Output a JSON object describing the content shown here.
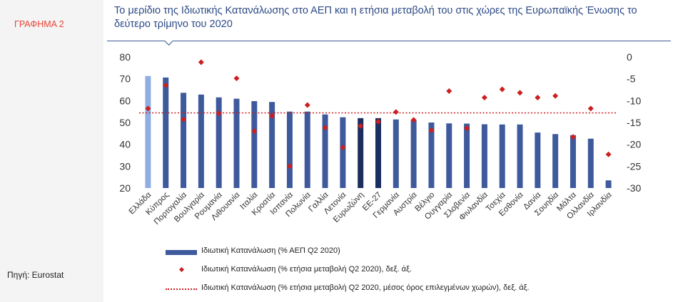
{
  "sidebar": {
    "chart_label": "ΓΡΑΦΗΜΑ 2",
    "source": "Πηγή: Eurostat"
  },
  "header": {
    "title": "Το μερίδιο της Ιδιωτικής Κατανάλωσης στο ΑΕΠ και η ετήσια μεταβολή του στις χώρες της Ευρωπαϊκής Ένωσης το δεύτερο τρίμηνο του 2020"
  },
  "colors": {
    "bar": "#3e5a9c",
    "bar_greece": "#8faee3",
    "bar_eurozone": "#1b2e5e",
    "bar_eu27": "#1b2e5e",
    "marker": "#cc1f1f",
    "avg_line": "#cc1f1f",
    "title": "#2c4a86"
  },
  "chart_data": {
    "type": "bar",
    "title": "",
    "categories": [
      "Ελλάδα",
      "Κύπρος",
      "Πορτογαλία",
      "Βουλγαρία",
      "Ρουμανία",
      "Λιθουανία",
      "Ιταλία",
      "Κροατία",
      "Ισπανία",
      "Πολωνία",
      "Γαλλία",
      "Λετονία",
      "Ευρωζώνη",
      "ΕΕ-27",
      "Γερμανία",
      "Αυστρία",
      "Βέλγιο",
      "Ουγγαρία",
      "Σλοβενία",
      "Φινλανδία",
      "Τσεχία",
      "Εσθονία",
      "Δανία",
      "Σουηδία",
      "Μάλτα",
      "Ολλανδία",
      "Ιρλανδία"
    ],
    "series": [
      {
        "name": "Ιδιωτική Κατανάλωση (% ΑΕΠ Q2 2020)",
        "axis": "left",
        "values": [
          71.3,
          70.6,
          63.6,
          62.8,
          61.5,
          60.9,
          59.8,
          59.4,
          55.0,
          55.0,
          53.7,
          52.4,
          52.0,
          52.0,
          51.4,
          51.1,
          50.0,
          49.6,
          49.5,
          49.2,
          49.1,
          49.1,
          45.4,
          44.7,
          44.2,
          42.6,
          23.5
        ]
      },
      {
        "name": "Ιδιωτική Κατανάλωση (% ετήσια μεταβολή Q2 2020), δεξ. άξ.",
        "axis": "right",
        "values": [
          -11.8,
          -6.5,
          -14.3,
          -1.2,
          -12.9,
          -4.9,
          -17.0,
          -13.5,
          -25.0,
          -11.0,
          -16.2,
          -20.7,
          -15.8,
          -14.8,
          -12.6,
          -14.4,
          -16.8,
          -7.8,
          -16.3,
          -9.3,
          -7.4,
          -8.2,
          -9.3,
          -8.9,
          -18.3,
          -11.8,
          -22.3
        ]
      },
      {
        "name": "Ιδιωτική Κατανάλωση (% ετήσια μεταβολή Q2 2020, μέσος όρος επιλεγμένων χωρών), δεξ. άξ.",
        "axis": "right",
        "value": -12.8
      }
    ],
    "ylim": [
      20,
      80
    ],
    "yticks": [
      20,
      30,
      40,
      50,
      60,
      70,
      80
    ],
    "y2lim": [
      -30,
      0
    ],
    "y2ticks": [
      -30,
      -25,
      -20,
      -15,
      -10,
      -5,
      0
    ],
    "legend_position": "bottom"
  }
}
